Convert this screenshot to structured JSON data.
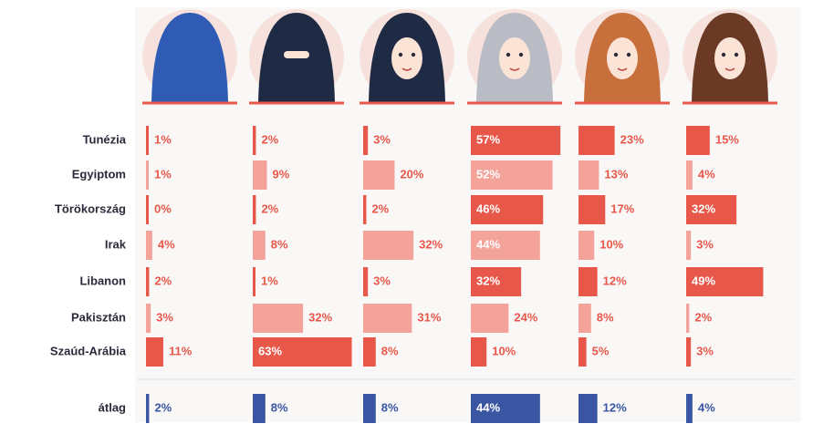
{
  "chart_data": {
    "type": "bar",
    "categories": [
      "Tunézia",
      "Egyiptom",
      "Törökország",
      "Irak",
      "Libanon",
      "Pakisztán",
      "Szaúd-Arábia",
      "átlag"
    ],
    "row_colors": [
      "#e8584a",
      "#f4a39b",
      "#e8584a",
      "#f4a39b",
      "#e8584a",
      "#f4a39b",
      "#e8584a",
      "#3a56a3"
    ],
    "xlim": [
      0,
      65
    ],
    "series": [
      {
        "values": [
          1,
          1,
          0,
          4,
          2,
          3,
          11,
          2
        ],
        "value_labels": [
          "1%",
          "1%",
          "0%",
          "4%",
          "2%",
          "3%",
          "11%",
          "2%"
        ]
      },
      {
        "values": [
          2,
          9,
          2,
          8,
          1,
          32,
          63,
          8
        ],
        "value_labels": [
          "2%",
          "9%",
          "2%",
          "8%",
          "1%",
          "32%",
          "63%",
          "8%"
        ]
      },
      {
        "values": [
          3,
          20,
          2,
          32,
          3,
          31,
          8,
          8
        ],
        "value_labels": [
          "3%",
          "20%",
          "2%",
          "32%",
          "3%",
          "31%",
          "8%",
          "8%"
        ]
      },
      {
        "values": [
          57,
          52,
          46,
          44,
          32,
          24,
          10,
          44
        ],
        "value_labels": [
          "57%",
          "52%",
          "46%",
          "44%",
          "32%",
          "24%",
          "10%",
          "44%"
        ]
      },
      {
        "values": [
          23,
          13,
          17,
          10,
          12,
          8,
          5,
          12
        ],
        "value_labels": [
          "23%",
          "13%",
          "17%",
          "10%",
          "12%",
          "8%",
          "5%",
          "12%"
        ]
      },
      {
        "values": [
          15,
          4,
          32,
          3,
          49,
          2,
          3,
          4
        ],
        "value_labels": [
          "15%",
          "4%",
          "32%",
          "3%",
          "49%",
          "2%",
          "3%",
          "4%"
        ]
      }
    ]
  }
}
